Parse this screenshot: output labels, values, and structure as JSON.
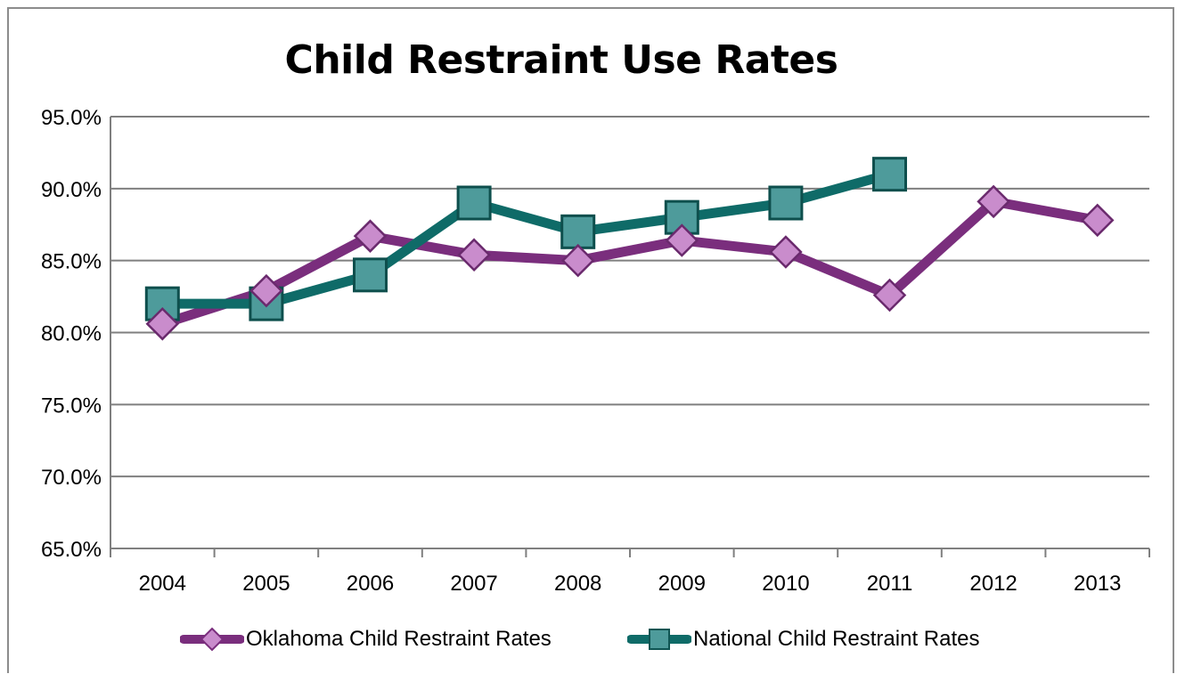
{
  "chart_data": {
    "type": "line",
    "title": "Child Restraint Use Rates",
    "xlabel": "",
    "ylabel": "",
    "categories": [
      "2004",
      "2005",
      "2006",
      "2007",
      "2008",
      "2009",
      "2010",
      "2011",
      "2012",
      "2013"
    ],
    "ylim": [
      65.0,
      95.0
    ],
    "yticks": [
      "65.0%",
      "70.0%",
      "75.0%",
      "80.0%",
      "85.0%",
      "90.0%",
      "95.0%"
    ],
    "grid": true,
    "legend_position": "bottom",
    "series": [
      {
        "name": "Oklahoma Child Restraint Rates",
        "marker": "diamond",
        "color": "#7a2e7d",
        "marker_color": "#c98ccc",
        "values": [
          80.6,
          82.9,
          86.7,
          85.4,
          85.0,
          86.4,
          85.6,
          82.6,
          89.1,
          87.8
        ]
      },
      {
        "name": "National Child Restraint Rates",
        "marker": "square",
        "color": "#0f6b68",
        "marker_color": "#4e9b9b",
        "values": [
          82.0,
          82.0,
          84.0,
          89.0,
          87.0,
          88.0,
          89.0,
          91.0,
          null,
          null
        ]
      }
    ]
  }
}
